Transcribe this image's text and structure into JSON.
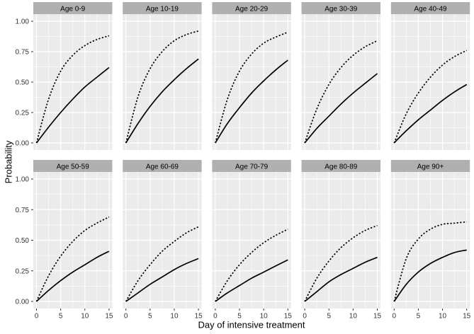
{
  "figure": {
    "background": "#ffffff",
    "panel_background": "#ebebeb",
    "strip_background": "#b0b0b0",
    "strip_text_color": "#000000",
    "grid_color": "#ffffff",
    "curve_color": "#000000",
    "tick_label_color": "#333333",
    "tick_mark_color": "#333333"
  },
  "axes": {
    "y_tick_labels": [
      "1.00",
      "0.75",
      "0.50",
      "0.25",
      "0.00"
    ],
    "x_tick_labels": [
      "0",
      "5",
      "10",
      "15"
    ]
  },
  "chart_data": {
    "type": "line",
    "title": "",
    "xlabel": "Day of intensive treatment",
    "ylabel": "Probability",
    "xlim": [
      0,
      15
    ],
    "ylim": [
      0,
      1
    ],
    "x_tick_values": [
      0,
      5,
      10,
      15
    ],
    "x_minor_values": [
      2.5,
      7.5,
      12.5
    ],
    "y_tick_values": [
      0,
      0.25,
      0.5,
      0.75,
      1.0
    ],
    "y_minor_values": [
      0.125,
      0.375,
      0.625,
      0.875
    ],
    "grid": true,
    "legend": "none",
    "facet_layout": {
      "rows": 2,
      "cols": 5
    },
    "x": [
      0,
      2.5,
      5,
      7.5,
      10,
      12.5,
      15
    ],
    "facets": [
      {
        "label": "Age 0-9",
        "series": [
          {
            "name": "upper-dotted",
            "linetype": "dotted",
            "values": [
              0,
              0.36,
              0.59,
              0.72,
              0.8,
              0.85,
              0.88
            ]
          },
          {
            "name": "lower-solid",
            "linetype": "solid",
            "values": [
              0,
              0.13,
              0.25,
              0.36,
              0.46,
              0.54,
              0.62
            ]
          }
        ]
      },
      {
        "label": "Age 10-19",
        "series": [
          {
            "name": "upper-dotted",
            "linetype": "dotted",
            "values": [
              0,
              0.38,
              0.61,
              0.75,
              0.84,
              0.89,
              0.92
            ]
          },
          {
            "name": "lower-solid",
            "linetype": "solid",
            "values": [
              0,
              0.16,
              0.3,
              0.42,
              0.52,
              0.61,
              0.69
            ]
          }
        ]
      },
      {
        "label": "Age 20-29",
        "series": [
          {
            "name": "upper-dotted",
            "linetype": "dotted",
            "values": [
              0,
              0.36,
              0.59,
              0.73,
              0.82,
              0.87,
              0.91
            ]
          },
          {
            "name": "lower-solid",
            "linetype": "solid",
            "values": [
              0,
              0.16,
              0.29,
              0.41,
              0.51,
              0.6,
              0.68
            ]
          }
        ]
      },
      {
        "label": "Age 30-39",
        "series": [
          {
            "name": "upper-dotted",
            "linetype": "dotted",
            "values": [
              0,
              0.28,
              0.48,
              0.62,
              0.72,
              0.79,
              0.84
            ]
          },
          {
            "name": "lower-solid",
            "linetype": "solid",
            "values": [
              0,
              0.12,
              0.22,
              0.32,
              0.41,
              0.49,
              0.57
            ]
          }
        ]
      },
      {
        "label": "Age 40-49",
        "series": [
          {
            "name": "upper-dotted",
            "linetype": "dotted",
            "values": [
              0,
              0.24,
              0.41,
              0.54,
              0.64,
              0.71,
              0.76
            ]
          },
          {
            "name": "lower-solid",
            "linetype": "solid",
            "values": [
              0,
              0.1,
              0.19,
              0.27,
              0.35,
              0.42,
              0.48
            ]
          }
        ]
      },
      {
        "label": "Age 50-59",
        "series": [
          {
            "name": "upper-dotted",
            "linetype": "dotted",
            "values": [
              0,
              0.21,
              0.37,
              0.49,
              0.58,
              0.64,
              0.69
            ]
          },
          {
            "name": "lower-solid",
            "linetype": "solid",
            "values": [
              0,
              0.09,
              0.17,
              0.24,
              0.3,
              0.36,
              0.41
            ]
          }
        ]
      },
      {
        "label": "Age 60-69",
        "series": [
          {
            "name": "upper-dotted",
            "linetype": "dotted",
            "values": [
              0,
              0.17,
              0.3,
              0.41,
              0.49,
              0.56,
              0.61
            ]
          },
          {
            "name": "lower-solid",
            "linetype": "solid",
            "values": [
              0,
              0.07,
              0.14,
              0.2,
              0.26,
              0.31,
              0.35
            ]
          }
        ]
      },
      {
        "label": "Age 70-79",
        "series": [
          {
            "name": "upper-dotted",
            "linetype": "dotted",
            "values": [
              0,
              0.17,
              0.3,
              0.4,
              0.48,
              0.54,
              0.59
            ]
          },
          {
            "name": "lower-solid",
            "linetype": "solid",
            "values": [
              0,
              0.07,
              0.13,
              0.19,
              0.24,
              0.29,
              0.34
            ]
          }
        ]
      },
      {
        "label": "Age 80-89",
        "series": [
          {
            "name": "upper-dotted",
            "linetype": "dotted",
            "values": [
              0,
              0.19,
              0.33,
              0.44,
              0.52,
              0.58,
              0.62
            ]
          },
          {
            "name": "lower-solid",
            "linetype": "solid",
            "values": [
              0,
              0.08,
              0.16,
              0.22,
              0.27,
              0.32,
              0.36
            ]
          }
        ]
      },
      {
        "label": "Age 90+",
        "series": [
          {
            "name": "upper-dotted",
            "linetype": "dotted",
            "values": [
              0,
              0.35,
              0.51,
              0.59,
              0.63,
              0.64,
              0.65
            ]
          },
          {
            "name": "lower-solid",
            "linetype": "solid",
            "values": [
              0,
              0.14,
              0.24,
              0.31,
              0.36,
              0.4,
              0.42
            ]
          }
        ]
      }
    ]
  }
}
